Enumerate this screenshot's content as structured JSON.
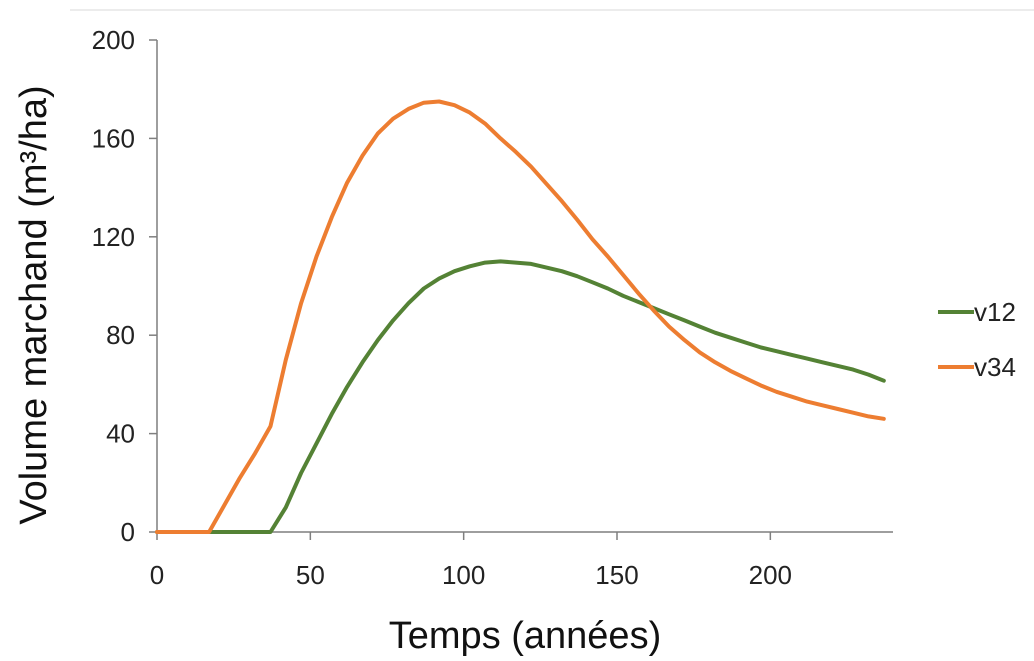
{
  "chart_data": {
    "type": "line",
    "xlabel": "Temps (années)",
    "ylabel": "Volume marchand (m³/ha)",
    "xlim": [
      0,
      240
    ],
    "ylim": [
      0,
      200
    ],
    "xticks": [
      0,
      50,
      100,
      150,
      200
    ],
    "yticks": [
      0,
      40,
      80,
      120,
      160,
      200
    ],
    "grid": false,
    "legend_position": "right",
    "series": [
      {
        "name": "v12",
        "color": "#548235",
        "x": [
          0,
          5,
          10,
          15,
          20,
          25,
          30,
          35,
          37,
          42,
          47,
          52,
          57,
          62,
          67,
          72,
          77,
          82,
          87,
          92,
          97,
          102,
          107,
          112,
          117,
          122,
          127,
          132,
          137,
          142,
          147,
          152,
          157,
          162,
          167,
          172,
          177,
          182,
          187,
          192,
          197,
          202,
          207,
          212,
          217,
          222,
          227,
          232,
          237
        ],
        "values": [
          0,
          0,
          0,
          0,
          0,
          0,
          0,
          0,
          0,
          10,
          24,
          36,
          48,
          59,
          69,
          78,
          86,
          93,
          99,
          103,
          106,
          108,
          109.5,
          110,
          109.5,
          109,
          107.5,
          106,
          104,
          101.5,
          99,
          96,
          93.5,
          91,
          88.5,
          86,
          83.5,
          81,
          79,
          77,
          75,
          73.5,
          72,
          70.5,
          69,
          67.5,
          66,
          64,
          61.5
        ]
      },
      {
        "name": "v34",
        "color": "#ED7D31",
        "x": [
          0,
          5,
          10,
          15,
          17,
          22,
          27,
          32,
          37,
          42,
          47,
          52,
          57,
          62,
          67,
          72,
          77,
          82,
          87,
          92,
          97,
          102,
          107,
          112,
          117,
          122,
          127,
          132,
          137,
          142,
          147,
          152,
          157,
          162,
          167,
          172,
          177,
          182,
          187,
          192,
          197,
          202,
          207,
          212,
          217,
          222,
          227,
          232,
          237
        ],
        "values": [
          0,
          0,
          0,
          0,
          0,
          11,
          22,
          32,
          43,
          70,
          93,
          112,
          128,
          142,
          153,
          162,
          168,
          172,
          174.5,
          175,
          173.5,
          170.5,
          166,
          160,
          154.5,
          148.5,
          141.5,
          134.5,
          127,
          119,
          112,
          104.5,
          97,
          90,
          83.5,
          78,
          73,
          69,
          65.5,
          62.5,
          59.5,
          57,
          55,
          53,
          51.5,
          50,
          48.5,
          47,
          46
        ]
      }
    ]
  }
}
